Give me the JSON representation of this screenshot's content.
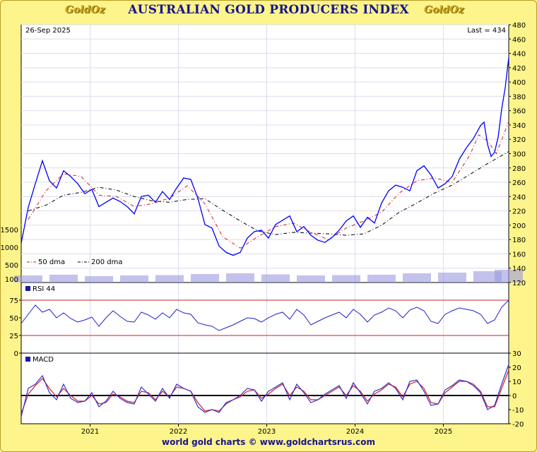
{
  "title": "AUSTRALIAN GOLD PRODUCERS INDEX",
  "logo_text": "GoldOz",
  "date_label": "26-Sep  2025",
  "last_label": "Last = 434",
  "footer": "world gold charts © www.goldchartsrus.com",
  "colors": {
    "background": "#fdf48b",
    "title": "#16158c",
    "price": "#0000ff",
    "volume": "#9a9ae0",
    "rsi": "#2020cc",
    "macd_line": "#cc2222",
    "rsi_bands": "#cc2222"
  },
  "chart_data": [
    {
      "type": "line",
      "panel": "price",
      "title": "AUSTRALIAN GOLD PRODUCERS INDEX",
      "y_axis_side": "right",
      "ylim": [
        120,
        480
      ],
      "yticks": [
        120,
        140,
        160,
        180,
        200,
        220,
        240,
        260,
        280,
        300,
        320,
        340,
        360,
        380,
        400,
        420,
        440,
        460,
        480
      ],
      "xlim": [
        2020.22,
        2025.74
      ],
      "xticks": [
        {
          "x": 2021.0,
          "label": "2021"
        },
        {
          "x": 2022.0,
          "label": "2022"
        },
        {
          "x": 2023.0,
          "label": "2023"
        },
        {
          "x": 2024.0,
          "label": "2024"
        },
        {
          "x": 2025.0,
          "label": "2025"
        }
      ],
      "grid": true,
      "legend": {
        "placement": "bottom-left",
        "entries": [
          "50 dma",
          "200 dma"
        ]
      },
      "series": [
        {
          "name": "Index",
          "x": [
            2020.22,
            2020.3,
            2020.38,
            2020.46,
            2020.54,
            2020.62,
            2020.7,
            2020.78,
            2020.86,
            2020.94,
            2021.02,
            2021.1,
            2021.18,
            2021.26,
            2021.34,
            2021.42,
            2021.5,
            2021.58,
            2021.66,
            2021.74,
            2021.82,
            2021.9,
            2021.98,
            2022.06,
            2022.14,
            2022.22,
            2022.3,
            2022.38,
            2022.46,
            2022.54,
            2022.62,
            2022.7,
            2022.78,
            2022.86,
            2022.94,
            2023.02,
            2023.1,
            2023.18,
            2023.26,
            2023.34,
            2023.42,
            2023.5,
            2023.58,
            2023.66,
            2023.74,
            2023.82,
            2023.9,
            2023.98,
            2024.06,
            2024.14,
            2024.22,
            2024.3,
            2024.38,
            2024.46,
            2024.54,
            2024.62,
            2024.7,
            2024.78,
            2024.86,
            2024.94,
            2025.02,
            2025.1,
            2025.18,
            2025.26,
            2025.34,
            2025.42,
            2025.46,
            2025.5,
            2025.54,
            2025.58,
            2025.62,
            2025.66,
            2025.7,
            2025.74
          ],
          "values": [
            175,
            225,
            258,
            290,
            262,
            252,
            276,
            268,
            258,
            244,
            250,
            226,
            232,
            238,
            233,
            226,
            216,
            240,
            242,
            232,
            247,
            236,
            252,
            266,
            264,
            238,
            201,
            196,
            171,
            162,
            158,
            162,
            182,
            191,
            193,
            182,
            201,
            207,
            213,
            191,
            198,
            186,
            179,
            176,
            183,
            193,
            206,
            213,
            197,
            211,
            203,
            231,
            248,
            256,
            253,
            248,
            276,
            283,
            270,
            252,
            258,
            268,
            292,
            308,
            321,
            339,
            344,
            313,
            296,
            302,
            323,
            362,
            392,
            434
          ]
        },
        {
          "name": "50 dma",
          "x": [
            2020.3,
            2020.5,
            2020.7,
            2020.9,
            2021.1,
            2021.3,
            2021.5,
            2021.7,
            2021.9,
            2022.1,
            2022.3,
            2022.5,
            2022.7,
            2022.9,
            2023.1,
            2023.3,
            2023.5,
            2023.7,
            2023.9,
            2024.1,
            2024.3,
            2024.5,
            2024.7,
            2024.9,
            2025.1,
            2025.3,
            2025.4,
            2025.5,
            2025.6,
            2025.74
          ],
          "values": [
            208,
            248,
            272,
            268,
            242,
            240,
            226,
            230,
            238,
            255,
            230,
            184,
            168,
            184,
            198,
            203,
            190,
            180,
            196,
            206,
            218,
            245,
            262,
            266,
            260,
            298,
            326,
            318,
            300,
            345
          ]
        },
        {
          "name": "200 dma",
          "x": [
            2020.3,
            2020.5,
            2020.7,
            2020.9,
            2021.1,
            2021.3,
            2021.5,
            2021.7,
            2021.9,
            2022.1,
            2022.3,
            2022.5,
            2022.7,
            2022.9,
            2023.1,
            2023.3,
            2023.5,
            2023.7,
            2023.9,
            2024.1,
            2024.3,
            2024.5,
            2024.7,
            2024.9,
            2025.1,
            2025.3,
            2025.5,
            2025.74
          ],
          "values": [
            220,
            228,
            242,
            246,
            253,
            249,
            240,
            234,
            232,
            236,
            237,
            221,
            206,
            192,
            187,
            190,
            189,
            188,
            186,
            188,
            200,
            218,
            231,
            245,
            256,
            271,
            286,
            303
          ]
        }
      ],
      "volume_axis": {
        "ylim": [
          0,
          2000
        ],
        "ticks": [
          100,
          500,
          1000,
          1500
        ]
      },
      "volume_series": {
        "name": "Volume",
        "x": [
          2020.3,
          2020.7,
          2021.1,
          2021.5,
          2021.9,
          2022.3,
          2022.7,
          2023.1,
          2023.5,
          2023.9,
          2024.3,
          2024.7,
          2025.1,
          2025.5,
          2025.74
        ],
        "values": [
          200,
          220,
          180,
          200,
          210,
          240,
          260,
          230,
          200,
          210,
          220,
          260,
          280,
          320,
          360
        ]
      }
    },
    {
      "type": "line",
      "panel": "rsi",
      "series_label": "RSI 44",
      "y_axis_side": "left",
      "ylim": [
        0,
        100
      ],
      "yticks": [
        0,
        25,
        50,
        75
      ],
      "bands": [
        75,
        25
      ],
      "series": [
        {
          "name": "RSI 44",
          "x": [
            2020.22,
            2020.3,
            2020.38,
            2020.46,
            2020.54,
            2020.62,
            2020.7,
            2020.78,
            2020.86,
            2020.94,
            2021.02,
            2021.1,
            2021.18,
            2021.26,
            2021.34,
            2021.42,
            2021.5,
            2021.58,
            2021.66,
            2021.74,
            2021.82,
            2021.9,
            2021.98,
            2022.06,
            2022.14,
            2022.22,
            2022.3,
            2022.38,
            2022.46,
            2022.54,
            2022.62,
            2022.7,
            2022.78,
            2022.86,
            2022.94,
            2023.02,
            2023.1,
            2023.18,
            2023.26,
            2023.34,
            2023.42,
            2023.5,
            2023.58,
            2023.66,
            2023.74,
            2023.82,
            2023.9,
            2023.98,
            2024.06,
            2024.14,
            2024.22,
            2024.3,
            2024.38,
            2024.46,
            2024.54,
            2024.62,
            2024.7,
            2024.78,
            2024.86,
            2024.94,
            2025.02,
            2025.1,
            2025.18,
            2025.26,
            2025.34,
            2025.42,
            2025.5,
            2025.58,
            2025.66,
            2025.74
          ],
          "values": [
            42,
            55,
            68,
            58,
            62,
            50,
            57,
            49,
            44,
            47,
            51,
            38,
            50,
            60,
            52,
            45,
            44,
            58,
            54,
            48,
            57,
            50,
            62,
            57,
            55,
            43,
            40,
            38,
            32,
            36,
            40,
            45,
            50,
            49,
            44,
            50,
            55,
            58,
            48,
            62,
            54,
            40,
            45,
            50,
            54,
            58,
            50,
            62,
            55,
            44,
            54,
            58,
            64,
            60,
            50,
            61,
            65,
            60,
            45,
            42,
            55,
            60,
            64,
            62,
            60,
            55,
            42,
            47,
            65,
            75
          ]
        }
      ]
    },
    {
      "type": "line",
      "panel": "macd",
      "series_label": "MACD",
      "y_axis_side": "right",
      "ylim": [
        -20,
        30
      ],
      "yticks": [
        -20,
        -10,
        0,
        10,
        20,
        30
      ],
      "series": [
        {
          "name": "MACD",
          "x": [
            2020.22,
            2020.3,
            2020.38,
            2020.46,
            2020.54,
            2020.62,
            2020.7,
            2020.78,
            2020.86,
            2020.94,
            2021.02,
            2021.1,
            2021.18,
            2021.26,
            2021.34,
            2021.42,
            2021.5,
            2021.58,
            2021.66,
            2021.74,
            2021.82,
            2021.9,
            2021.98,
            2022.06,
            2022.14,
            2022.22,
            2022.3,
            2022.38,
            2022.46,
            2022.54,
            2022.62,
            2022.7,
            2022.78,
            2022.86,
            2022.94,
            2023.02,
            2023.1,
            2023.18,
            2023.26,
            2023.34,
            2023.42,
            2023.5,
            2023.58,
            2023.66,
            2023.74,
            2023.82,
            2023.9,
            2023.98,
            2024.06,
            2024.14,
            2024.22,
            2024.3,
            2024.38,
            2024.46,
            2024.54,
            2024.62,
            2024.7,
            2024.78,
            2024.86,
            2024.94,
            2025.02,
            2025.1,
            2025.18,
            2025.26,
            2025.34,
            2025.42,
            2025.5,
            2025.58,
            2025.66,
            2025.74
          ],
          "values": [
            -15,
            5,
            8,
            14,
            2,
            -3,
            8,
            -2,
            -5,
            -4,
            2,
            -8,
            -4,
            3,
            -2,
            -5,
            -6,
            6,
            1,
            -4,
            5,
            -2,
            8,
            5,
            3,
            -8,
            -12,
            -10,
            -12,
            -5,
            -3,
            0,
            5,
            4,
            -4,
            3,
            6,
            9,
            -3,
            8,
            2,
            -5,
            -3,
            1,
            4,
            7,
            -2,
            9,
            2,
            -6,
            3,
            5,
            9,
            5,
            -3,
            10,
            11,
            3,
            -7,
            -6,
            4,
            7,
            11,
            10,
            7,
            2,
            -10,
            -7,
            8,
            22
          ]
        },
        {
          "name": "Signal",
          "x": [
            2020.22,
            2020.3,
            2020.38,
            2020.46,
            2020.54,
            2020.62,
            2020.7,
            2020.78,
            2020.86,
            2020.94,
            2021.02,
            2021.1,
            2021.18,
            2021.26,
            2021.34,
            2021.42,
            2021.5,
            2021.58,
            2021.66,
            2021.74,
            2021.82,
            2021.9,
            2021.98,
            2022.06,
            2022.14,
            2022.22,
            2022.3,
            2022.38,
            2022.46,
            2022.54,
            2022.62,
            2022.7,
            2022.78,
            2022.86,
            2022.94,
            2023.02,
            2023.1,
            2023.18,
            2023.26,
            2023.34,
            2023.42,
            2023.5,
            2023.58,
            2023.66,
            2023.74,
            2023.82,
            2023.9,
            2023.98,
            2024.06,
            2024.14,
            2024.22,
            2024.3,
            2024.38,
            2024.46,
            2024.54,
            2024.62,
            2024.7,
            2024.78,
            2024.86,
            2024.94,
            2025.02,
            2025.1,
            2025.18,
            2025.26,
            2025.34,
            2025.42,
            2025.5,
            2025.58,
            2025.66,
            2025.74
          ],
          "values": [
            -13,
            1,
            7,
            12,
            5,
            -1,
            5,
            0,
            -4,
            -4,
            0,
            -6,
            -5,
            1,
            -1,
            -4,
            -5,
            3,
            2,
            -3,
            3,
            -1,
            6,
            5,
            3,
            -5,
            -11,
            -10,
            -11,
            -6,
            -3,
            -1,
            3,
            4,
            -2,
            1,
            5,
            8,
            0,
            6,
            3,
            -3,
            -3,
            0,
            3,
            6,
            0,
            7,
            3,
            -4,
            1,
            4,
            8,
            6,
            -1,
            8,
            10,
            5,
            -5,
            -6,
            2,
            6,
            10,
            10,
            8,
            3,
            -8,
            -8,
            5,
            18
          ]
        }
      ]
    }
  ]
}
